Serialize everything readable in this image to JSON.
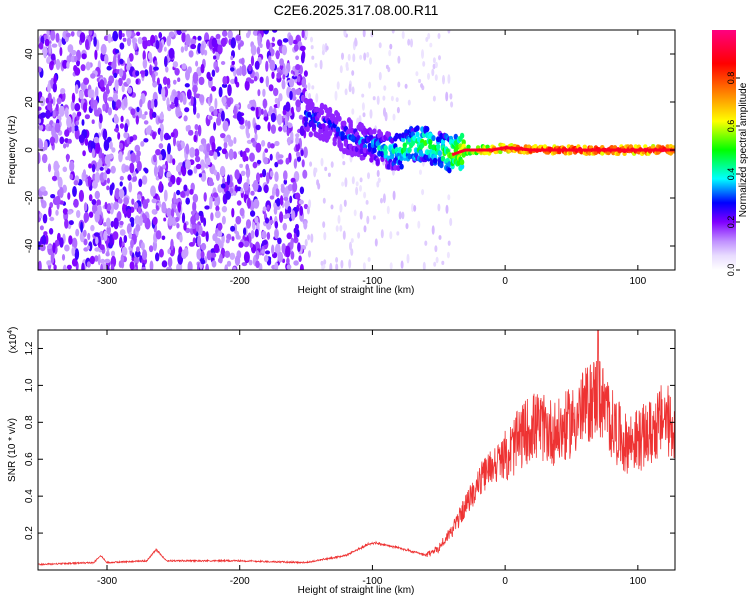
{
  "title": "C2E6.2025.317.08.00.R11",
  "chart_data": [
    {
      "type": "heatmap",
      "xlabel": "Height of straight line (km)",
      "ylabel": "Frequency (Hz)",
      "xlim": [
        -352,
        128
      ],
      "ylim": [
        -50,
        50
      ],
      "x_ticks": [
        -300,
        -200,
        -100,
        0,
        100
      ],
      "y_ticks": [
        -40,
        -20,
        0,
        20,
        40
      ],
      "noise_region": {
        "x_range": [
          -352,
          -150
        ],
        "y_range": [
          -50,
          50
        ],
        "approx_amplitude": [
          0.1,
          0.25
        ]
      },
      "ridge": [
        {
          "x": -150,
          "y": 14,
          "amp": 0.3
        },
        {
          "x": -140,
          "y": 12,
          "amp": 0.3
        },
        {
          "x": -130,
          "y": 10,
          "amp": 0.25
        },
        {
          "x": -120,
          "y": 6,
          "amp": 0.3
        },
        {
          "x": -110,
          "y": 4,
          "amp": 0.3
        },
        {
          "x": -100,
          "y": 2,
          "amp": 0.35
        },
        {
          "x": -90,
          "y": 0,
          "amp": 0.4
        },
        {
          "x": -80,
          "y": -1,
          "amp": 0.45
        },
        {
          "x": -70,
          "y": 2,
          "amp": 0.5
        },
        {
          "x": -60,
          "y": 3,
          "amp": 0.5
        },
        {
          "x": -50,
          "y": 0,
          "amp": 0.45
        },
        {
          "x": -40,
          "y": -2,
          "amp": 0.55
        },
        {
          "x": -30,
          "y": 0,
          "amp": 0.65
        },
        {
          "x": -20,
          "y": 0,
          "amp": 0.75
        },
        {
          "x": -10,
          "y": 0,
          "amp": 0.8
        },
        {
          "x": 0,
          "y": 1,
          "amp": 0.85
        },
        {
          "x": 20,
          "y": 0,
          "amp": 0.9
        },
        {
          "x": 40,
          "y": 0,
          "amp": 0.9
        },
        {
          "x": 60,
          "y": 0,
          "amp": 0.92
        },
        {
          "x": 80,
          "y": 0,
          "amp": 0.9
        },
        {
          "x": 100,
          "y": 0,
          "amp": 0.9
        },
        {
          "x": 128,
          "y": 0,
          "amp": 0.9
        }
      ],
      "colorbar": {
        "label": "Normalized spectral amplitude",
        "range": [
          0.0,
          1.0
        ],
        "ticks": [
          0.0,
          0.2,
          0.4,
          0.6,
          0.8
        ]
      }
    },
    {
      "type": "line",
      "xlabel": "Height of straight line (km)",
      "ylabel": "SNR (10 * v/v)",
      "y_scale_label": "(x10",
      "y_scale_exp": "4",
      "y_scale_close": ")",
      "xlim": [
        -352,
        128
      ],
      "ylim": [
        0,
        1.3
      ],
      "x_ticks": [
        -300,
        -200,
        -100,
        0,
        100
      ],
      "y_ticks": [
        0.2,
        0.4,
        0.6,
        0.8,
        1.0,
        1.2
      ],
      "series_color": "#ee3333",
      "envelope": [
        {
          "x": -352,
          "y": 0.03
        },
        {
          "x": -310,
          "y": 0.04
        },
        {
          "x": -305,
          "y": 0.08
        },
        {
          "x": -300,
          "y": 0.04
        },
        {
          "x": -270,
          "y": 0.05
        },
        {
          "x": -263,
          "y": 0.11
        },
        {
          "x": -255,
          "y": 0.05
        },
        {
          "x": -200,
          "y": 0.05
        },
        {
          "x": -150,
          "y": 0.04
        },
        {
          "x": -120,
          "y": 0.08
        },
        {
          "x": -100,
          "y": 0.15
        },
        {
          "x": -80,
          "y": 0.12
        },
        {
          "x": -60,
          "y": 0.08
        },
        {
          "x": -50,
          "y": 0.12
        },
        {
          "x": -40,
          "y": 0.22
        },
        {
          "x": -30,
          "y": 0.35
        },
        {
          "x": -20,
          "y": 0.48
        },
        {
          "x": -10,
          "y": 0.58
        },
        {
          "x": 0,
          "y": 0.62
        },
        {
          "x": 10,
          "y": 0.72
        },
        {
          "x": 20,
          "y": 0.8
        },
        {
          "x": 30,
          "y": 0.78
        },
        {
          "x": 40,
          "y": 0.76
        },
        {
          "x": 50,
          "y": 0.82
        },
        {
          "x": 60,
          "y": 0.9
        },
        {
          "x": 70,
          "y": 0.98
        },
        {
          "x": 80,
          "y": 0.82
        },
        {
          "x": 90,
          "y": 0.7
        },
        {
          "x": 100,
          "y": 0.72
        },
        {
          "x": 110,
          "y": 0.76
        },
        {
          "x": 120,
          "y": 0.85
        },
        {
          "x": 128,
          "y": 0.78
        }
      ],
      "peak": {
        "x": 70,
        "y": 1.3
      }
    }
  ]
}
